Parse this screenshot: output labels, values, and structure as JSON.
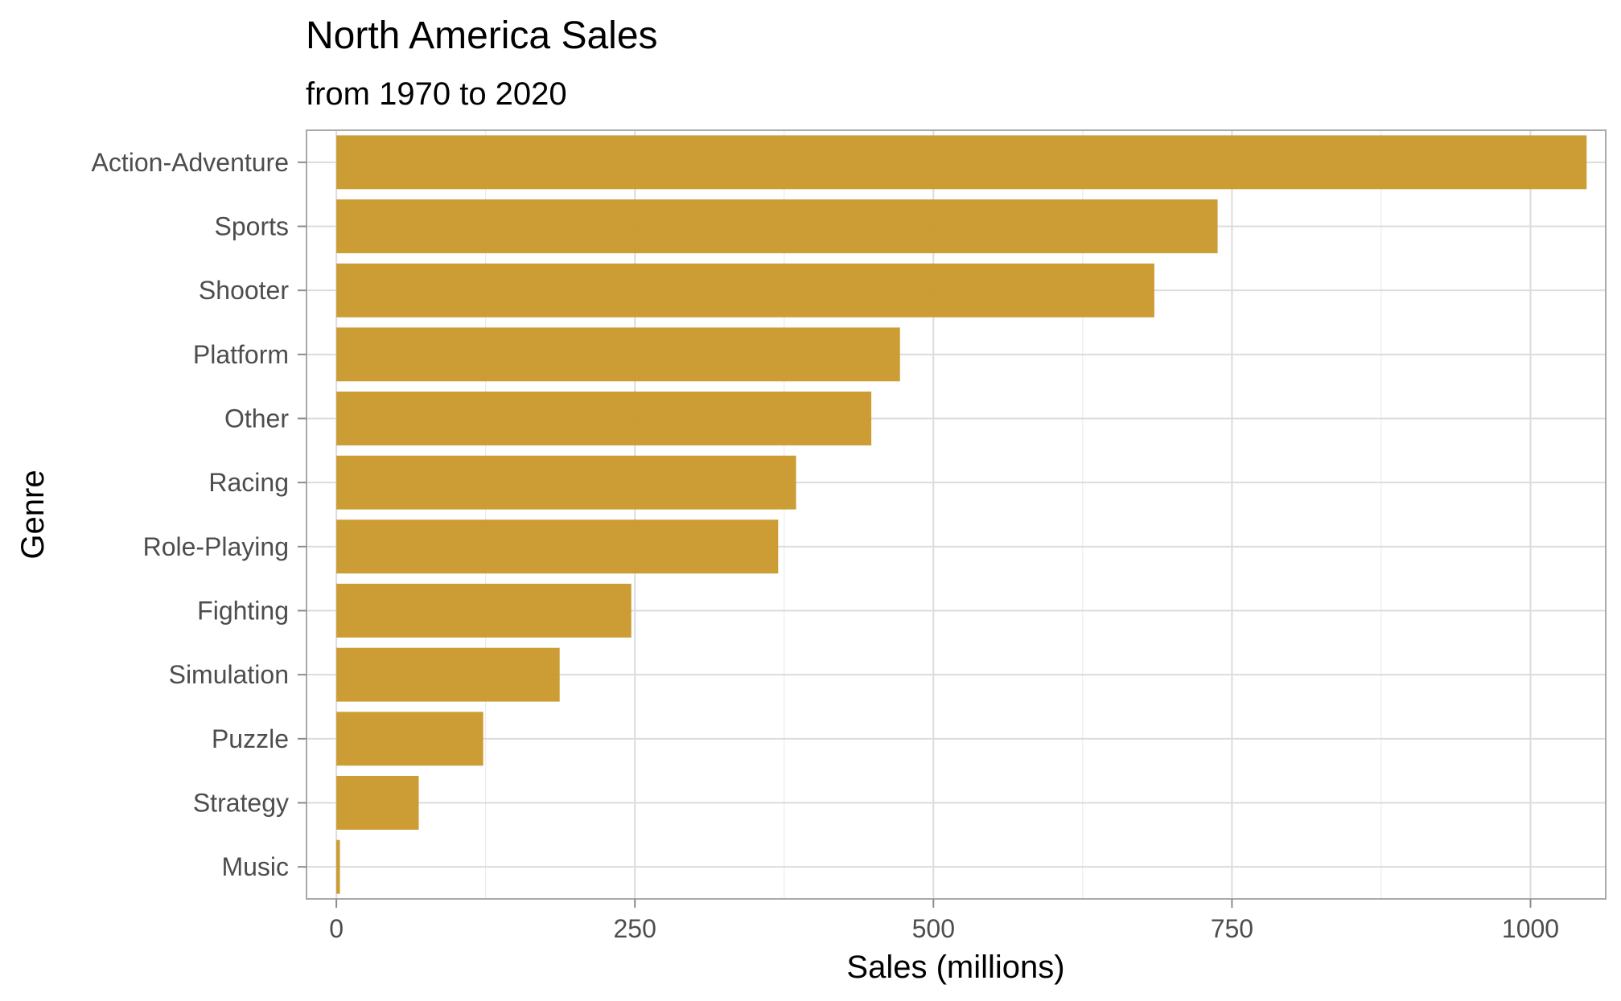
{
  "chart_data": {
    "type": "bar",
    "orientation": "horizontal",
    "title": "North America Sales",
    "subtitle": "from 1970 to 2020",
    "xlabel": "Sales (millions)",
    "ylabel": "Genre",
    "categories": [
      "Action-Adventure",
      "Sports",
      "Shooter",
      "Platform",
      "Other",
      "Racing",
      "Role-Playing",
      "Fighting",
      "Simulation",
      "Puzzle",
      "Strategy",
      "Music"
    ],
    "values": [
      1047,
      738,
      685,
      472,
      448,
      385,
      370,
      247,
      187,
      123,
      69,
      3
    ],
    "xlim": [
      -25,
      1063
    ],
    "xticks": [
      0,
      250,
      500,
      750,
      1000
    ],
    "xtick_labels": [
      "0",
      "250",
      "500",
      "750",
      "1000"
    ],
    "grid": true,
    "bar_color": "#c9982a"
  }
}
